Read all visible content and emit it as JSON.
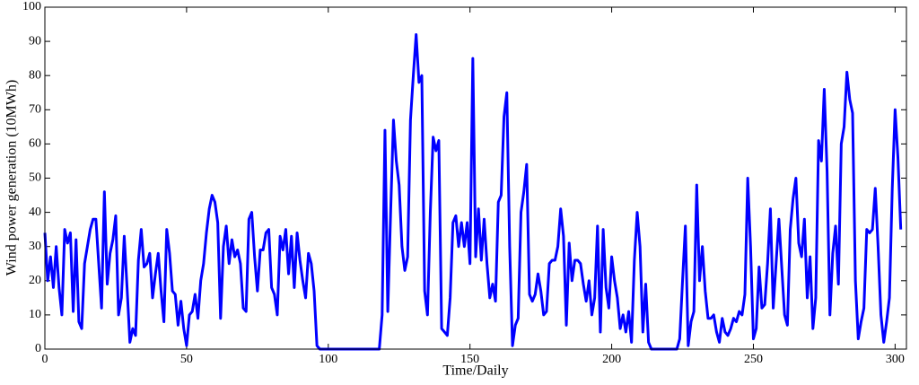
{
  "chart_data": {
    "type": "line",
    "xlabel": "Time/Daily",
    "ylabel": "Wind power generation (10MWh)",
    "xlim": [
      0,
      304
    ],
    "xticks": [
      0,
      50,
      100,
      150,
      200,
      250,
      300
    ],
    "ylim": [
      0,
      100
    ],
    "yticks": [
      0,
      10,
      20,
      30,
      40,
      50,
      60,
      70,
      80,
      90,
      100
    ],
    "grid": false,
    "x": [
      0,
      1,
      2,
      3,
      4,
      5,
      6,
      7,
      8,
      9,
      10,
      11,
      12,
      13,
      14,
      15,
      16,
      17,
      18,
      19,
      20,
      21,
      22,
      23,
      24,
      25,
      26,
      27,
      28,
      29,
      30,
      31,
      32,
      33,
      34,
      35,
      36,
      37,
      38,
      39,
      40,
      41,
      42,
      43,
      44,
      45,
      46,
      47,
      48,
      49,
      50,
      51,
      52,
      53,
      54,
      55,
      56,
      57,
      58,
      59,
      60,
      61,
      62,
      63,
      64,
      65,
      66,
      67,
      68,
      69,
      70,
      71,
      72,
      73,
      74,
      75,
      76,
      77,
      78,
      79,
      80,
      81,
      82,
      83,
      84,
      85,
      86,
      87,
      88,
      89,
      90,
      91,
      92,
      93,
      94,
      95,
      96,
      97,
      98,
      99,
      100,
      101,
      102,
      103,
      104,
      105,
      106,
      107,
      108,
      109,
      110,
      111,
      112,
      113,
      114,
      115,
      116,
      117,
      118,
      119,
      120,
      121,
      122,
      123,
      124,
      125,
      126,
      127,
      128,
      129,
      130,
      131,
      132,
      133,
      134,
      135,
      136,
      137,
      138,
      139,
      140,
      141,
      142,
      143,
      144,
      145,
      146,
      147,
      148,
      149,
      150,
      151,
      152,
      153,
      154,
      155,
      156,
      157,
      158,
      159,
      160,
      161,
      162,
      163,
      164,
      165,
      166,
      167,
      168,
      169,
      170,
      171,
      172,
      173,
      174,
      175,
      176,
      177,
      178,
      179,
      180,
      181,
      182,
      183,
      184,
      185,
      186,
      187,
      188,
      189,
      190,
      191,
      192,
      193,
      194,
      195,
      196,
      197,
      198,
      199,
      200,
      201,
      202,
      203,
      204,
      205,
      206,
      207,
      208,
      209,
      210,
      211,
      212,
      213,
      214,
      215,
      216,
      217,
      218,
      219,
      220,
      221,
      222,
      223,
      224,
      225,
      226,
      227,
      228,
      229,
      230,
      231,
      232,
      233,
      234,
      235,
      236,
      237,
      238,
      239,
      240,
      241,
      242,
      243,
      244,
      245,
      246,
      247,
      248,
      249,
      250,
      251,
      252,
      253,
      254,
      255,
      256,
      257,
      258,
      259,
      260,
      261,
      262,
      263,
      264,
      265,
      266,
      267,
      268,
      269,
      270,
      271,
      272,
      273,
      274,
      275,
      276,
      277,
      278,
      279,
      280,
      281,
      282,
      283,
      284,
      285,
      286,
      287,
      288,
      289,
      290,
      291,
      292,
      293,
      294,
      295,
      296,
      297,
      298,
      299,
      300,
      301,
      302
    ],
    "series": [
      {
        "color": "#0000ff",
        "values": [
          34,
          20,
          27,
          18,
          30,
          18,
          10,
          35,
          31,
          34,
          11,
          32,
          8,
          6,
          25,
          30,
          35,
          38,
          38,
          25,
          12,
          46,
          19,
          28,
          32,
          39,
          10,
          15,
          33,
          18,
          2,
          6,
          4,
          26,
          35,
          24,
          25,
          28,
          15,
          22,
          28,
          17,
          8,
          35,
          28,
          17,
          16,
          7,
          14,
          6,
          1,
          10,
          11,
          16,
          9,
          20,
          25,
          34,
          41,
          45,
          43,
          37,
          9,
          30,
          36,
          25,
          32,
          27,
          29,
          25,
          12,
          11,
          38,
          40,
          27,
          17,
          29,
          29,
          34,
          35,
          18,
          16,
          10,
          33,
          29,
          35,
          22,
          33,
          18,
          34,
          26,
          20,
          15,
          28,
          25,
          17,
          1,
          0,
          0,
          0,
          0,
          0,
          0,
          0,
          0,
          0,
          0,
          0,
          0,
          0,
          0,
          0,
          0,
          0,
          0,
          0,
          0,
          0,
          0,
          10,
          64,
          11,
          40,
          67,
          55,
          48,
          30,
          23,
          27,
          67,
          80,
          92,
          78,
          80,
          17,
          10,
          40,
          62,
          58,
          61,
          6,
          5,
          4,
          15,
          37,
          39,
          30,
          37,
          30,
          37,
          25,
          85,
          27,
          41,
          26,
          38,
          25,
          15,
          19,
          14,
          43,
          45,
          68,
          75,
          30,
          1,
          7,
          9,
          40,
          46,
          54,
          16,
          14,
          16,
          22,
          17,
          10,
          11,
          25,
          26,
          26,
          30,
          41,
          33,
          7,
          31,
          20,
          26,
          26,
          25,
          19,
          14,
          20,
          10,
          15,
          36,
          5,
          35,
          18,
          12,
          27,
          20,
          15,
          6,
          10,
          5,
          11,
          2,
          26,
          40,
          30,
          5,
          19,
          2,
          0,
          0,
          0,
          0,
          0,
          0,
          0,
          0,
          0,
          0,
          3,
          20,
          36,
          1,
          8,
          11,
          48,
          20,
          30,
          17,
          9,
          9,
          10,
          5,
          2,
          9,
          5,
          4,
          6,
          9,
          8,
          11,
          10,
          16,
          50,
          30,
          3,
          6,
          24,
          12,
          13,
          25,
          41,
          12,
          25,
          38,
          24,
          10,
          7,
          35,
          44,
          50,
          31,
          27,
          38,
          15,
          27,
          6,
          15,
          61,
          55,
          76,
          52,
          10,
          28,
          36,
          19,
          60,
          65,
          81,
          73,
          69,
          20,
          3,
          8,
          12,
          35,
          34,
          35,
          47,
          30,
          10,
          2,
          8,
          15,
          47,
          70,
          56,
          35
        ]
      }
    ]
  }
}
